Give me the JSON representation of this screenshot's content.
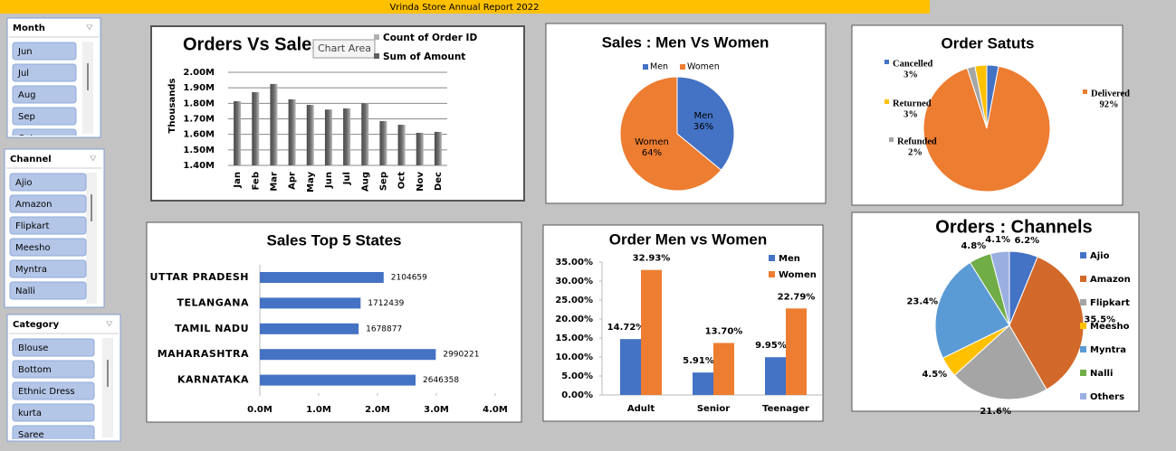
{
  "header": {
    "title": "Vrinda Store Annual Report 2022"
  },
  "slicers": [
    {
      "title": "Month",
      "items": [
        "Jun",
        "Jul",
        "Aug",
        "Sep",
        "Oct"
      ]
    },
    {
      "title": "Channel",
      "items": [
        "Ajio",
        "Amazon",
        "Flipkart",
        "Meesho",
        "Myntra",
        "Nalli"
      ]
    },
    {
      "title": "Category",
      "items": [
        "Blouse",
        "Bottom",
        "Ethnic Dress",
        "kurta",
        "Saree"
      ]
    }
  ],
  "chart_data": [
    {
      "type": "bar",
      "title": "Orders Vs Sales",
      "tooltip": "Chart Area",
      "y_label": "Thousands",
      "legend": [
        {
          "name": "Count of Order ID",
          "color": "#b0b0b0"
        },
        {
          "name": "Sum of Amount",
          "color": "#606060"
        }
      ],
      "categories": [
        "Jan",
        "Feb",
        "Mar",
        "Apr",
        "May",
        "Jun",
        "Jul",
        "Aug",
        "Sep",
        "Oct",
        "Nov",
        "Dec"
      ],
      "series": [
        {
          "name": "Sum of Amount",
          "color": "#6a6a6a",
          "values": [
            1.814,
            1.872,
            1.925,
            1.826,
            1.79,
            1.76,
            1.767,
            1.8,
            1.686,
            1.662,
            1.61,
            1.616
          ]
        }
      ],
      "ylim": [
        1.4,
        2.0
      ],
      "yticks": [
        {
          "value": 1.4,
          "label": "1.40M"
        },
        {
          "value": 1.5,
          "label": "1.50M"
        },
        {
          "value": 1.6,
          "label": "1.60M"
        },
        {
          "value": 1.7,
          "label": "1.70M"
        },
        {
          "value": 1.8,
          "label": "1.80M"
        },
        {
          "value": 1.9,
          "label": "1.90M"
        },
        {
          "value": 2.0,
          "label": "2.00M"
        }
      ],
      "grid": true
    },
    {
      "type": "pie",
      "title": "Sales : Men Vs Women",
      "categories": [
        "Men",
        "Women"
      ],
      "values": [
        36,
        64
      ],
      "value_labels": [
        "36%",
        "64%"
      ],
      "colors": [
        "#4472c4",
        "#ed7d31"
      ]
    },
    {
      "type": "pie",
      "title": "Order Satuts",
      "categories": [
        "Cancelled",
        "Delivered",
        "Refunded",
        "Returned"
      ],
      "values": [
        3,
        92,
        2,
        3
      ],
      "value_labels": [
        "3%",
        "92%",
        "2%",
        "3%"
      ],
      "colors": [
        "#4472c4",
        "#ed7d31",
        "#a5a5a5",
        "#ffc000"
      ]
    },
    {
      "type": "hbar",
      "title": "Sales Top 5 States",
      "categories": [
        "UTTAR PRADESH",
        "TELANGANA",
        "TAMIL NADU",
        "MAHARASHTRA",
        "KARNATAKA"
      ],
      "values": [
        2104659,
        1712439,
        1678877,
        2990221,
        2646358
      ],
      "color": "#4472c4",
      "xlim": [
        0,
        4000000
      ],
      "xticks": [
        {
          "value": 0,
          "label": "0.0M"
        },
        {
          "value": 1000000,
          "label": "1.0M"
        },
        {
          "value": 2000000,
          "label": "2.0M"
        },
        {
          "value": 3000000,
          "label": "3.0M"
        },
        {
          "value": 4000000,
          "label": "4.0M"
        }
      ]
    },
    {
      "type": "grouped",
      "title": "Order Men vs Women",
      "categories": [
        "Adult",
        "Senior",
        "Teenager"
      ],
      "series": [
        {
          "name": "Men",
          "color": "#4472c4",
          "values": [
            14.72,
            5.91,
            9.95
          ],
          "value_labels": [
            "14.72%",
            "5.91%",
            "9.95%"
          ]
        },
        {
          "name": "Women",
          "color": "#ed7d31",
          "values": [
            32.93,
            13.7,
            22.79
          ],
          "value_labels": [
            "32.93%",
            "13.70%",
            "22.79%"
          ]
        }
      ],
      "ylim": [
        0,
        35
      ],
      "yticks": [
        {
          "value": 0,
          "label": "0.00%"
        },
        {
          "value": 5,
          "label": "5.00%"
        },
        {
          "value": 10,
          "label": "10.00%"
        },
        {
          "value": 15,
          "label": "15.00%"
        },
        {
          "value": 20,
          "label": "20.00%"
        },
        {
          "value": 25,
          "label": "25.00%"
        },
        {
          "value": 30,
          "label": "30.00%"
        },
        {
          "value": 35,
          "label": "35.00%"
        }
      ]
    },
    {
      "type": "pie",
      "title": "Orders : Channels",
      "categories": [
        "Ajio",
        "Amazon",
        "Flipkart",
        "Meesho",
        "Myntra",
        "Nalli",
        "Others"
      ],
      "values": [
        6.2,
        35.5,
        21.6,
        4.5,
        23.4,
        4.8,
        4.1
      ],
      "value_labels": [
        "6.2%",
        "35.5%",
        "21.6%",
        "4.5%",
        "23.4%",
        "4.8%",
        "4.1%"
      ],
      "colors": [
        "#4472c4",
        "#d2692a",
        "#a5a5a5",
        "#ffc000",
        "#5b9bd5",
        "#70ad47",
        "#9aaee0"
      ]
    }
  ]
}
